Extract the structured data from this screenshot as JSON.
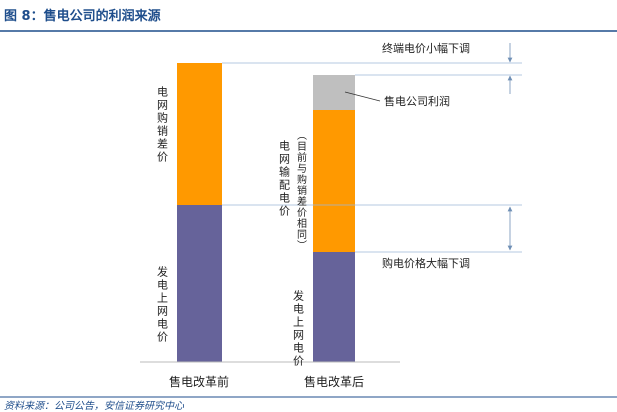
{
  "header": {
    "title": "图 8：售电公司的利润来源"
  },
  "columns": [
    {
      "label": "售电改革前",
      "segments": [
        "电网购销差价",
        "发电上网电价"
      ]
    },
    {
      "label": "售电改革后",
      "segments": [
        "电网输配电价",
        "（目前与购销差价相同）",
        "发电上网电价"
      ]
    }
  ],
  "annotations": [
    "终端电价小幅下调",
    "售电公司利润",
    "购电价格大幅下调"
  ],
  "footer": {
    "source": "资料来源：公司公告，安信证券研究中心"
  }
}
